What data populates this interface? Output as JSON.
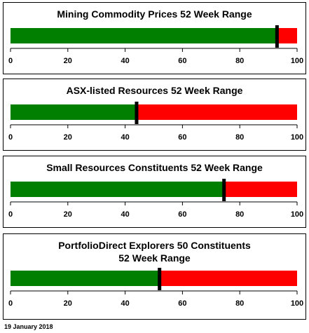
{
  "colors": {
    "below": "#007f00",
    "above": "#ff0000",
    "marker": "#000000"
  },
  "chart_data": [
    {
      "type": "bar",
      "title": "Mining Commodity Prices 52 Week Range",
      "xlim": [
        0,
        100
      ],
      "ticks": [
        "0",
        "20",
        "40",
        "60",
        "80",
        "100"
      ],
      "value": 93
    },
    {
      "type": "bar",
      "title": "ASX-listed Resources 52 Week Range",
      "xlim": [
        0,
        100
      ],
      "ticks": [
        "0",
        "20",
        "40",
        "60",
        "80",
        "100"
      ],
      "value": 44
    },
    {
      "type": "bar",
      "title": "Small Resources Constituents 52 Week Range",
      "xlim": [
        0,
        100
      ],
      "ticks": [
        "0",
        "20",
        "40",
        "60",
        "80",
        "100"
      ],
      "value": 74.5
    },
    {
      "type": "bar",
      "title": "PortfolioDirect Explorers 50 Constituents\n52 Week Range",
      "xlim": [
        0,
        100
      ],
      "ticks": [
        "0",
        "20",
        "40",
        "60",
        "80",
        "100"
      ],
      "value": 52
    }
  ],
  "footer": {
    "date": "19 January 2018"
  }
}
